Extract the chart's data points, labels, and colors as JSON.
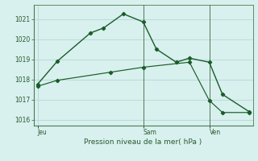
{
  "title": "Pression niveau de la mer( hPa )",
  "background_color": "#cce8e4",
  "plot_bg_color": "#d8f0ee",
  "grid_color": "#b8dcd8",
  "line_color": "#1a5c28",
  "spine_color": "#4a7a50",
  "tick_color": "#2a5a30",
  "ylim": [
    1015.7,
    1021.7
  ],
  "yticks": [
    1016,
    1017,
    1018,
    1019,
    1020,
    1021
  ],
  "x_day_labels": [
    {
      "label": "Jeu",
      "x": 0.0
    },
    {
      "label": "Sam",
      "x": 8.0
    },
    {
      "label": "Ven",
      "x": 13.0
    }
  ],
  "line1_x": [
    0,
    1.5,
    4,
    5,
    6.5,
    8,
    9,
    10.5,
    11.5,
    13,
    14,
    16
  ],
  "line1_y": [
    1017.75,
    1018.9,
    1020.3,
    1020.55,
    1021.25,
    1020.85,
    1019.5,
    1018.85,
    1019.05,
    1018.85,
    1017.25,
    1016.4
  ],
  "line2_x": [
    0,
    1.5,
    5.5,
    8,
    11.5,
    13,
    14,
    16
  ],
  "line2_y": [
    1017.65,
    1017.95,
    1018.35,
    1018.6,
    1018.85,
    1016.95,
    1016.35,
    1016.35
  ],
  "vline_x": [
    8.0,
    13.0
  ],
  "xlim": [
    -0.3,
    16.3
  ]
}
